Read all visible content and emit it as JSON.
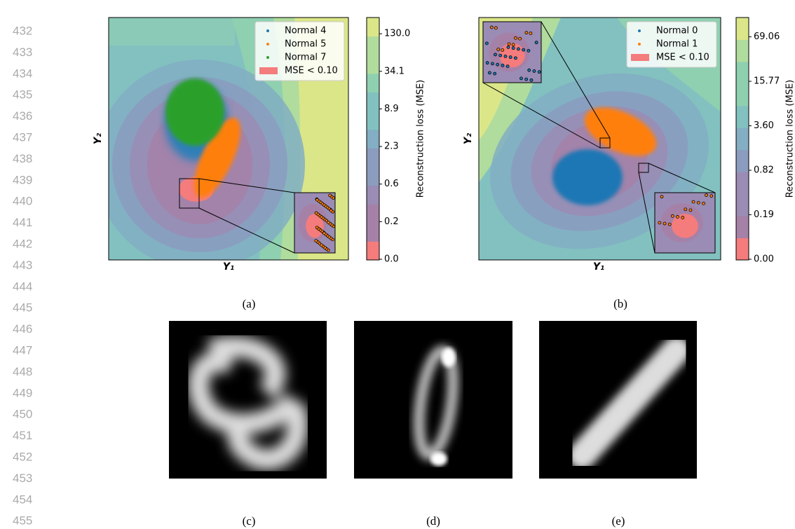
{
  "line_numbers": [
    "432",
    "433",
    "434",
    "435",
    "436",
    "437",
    "438",
    "439",
    "440",
    "441",
    "442",
    "443",
    "444",
    "445",
    "446",
    "447",
    "448",
    "449",
    "450",
    "451",
    "452",
    "453",
    "454",
    "455"
  ],
  "panel_a": {
    "legend": [
      "Normal 4",
      "Normal 5",
      "Normal 7",
      "MSE < 0.10"
    ],
    "x_label": "Y₁",
    "y_label": "Y₂",
    "colorbar_label": "Reconstruction loss (MSE)",
    "colorbar_ticks": [
      "0.0",
      "0.2",
      "0.6",
      "2.3",
      "8.9",
      "34.1",
      "130.0"
    ],
    "caption": "(a)"
  },
  "panel_b": {
    "legend": [
      "Normal 0",
      "Normal 1",
      "MSE < 0.10"
    ],
    "x_label": "Y₁",
    "y_label": "Y₂",
    "colorbar_label": "Reconstruction loss (MSE)",
    "colorbar_ticks": [
      "0.00",
      "0.19",
      "0.82",
      "3.60",
      "15.77",
      "69.06"
    ],
    "caption": "(b)"
  },
  "captions": [
    "(c)",
    "(d)",
    "(e)"
  ]
}
